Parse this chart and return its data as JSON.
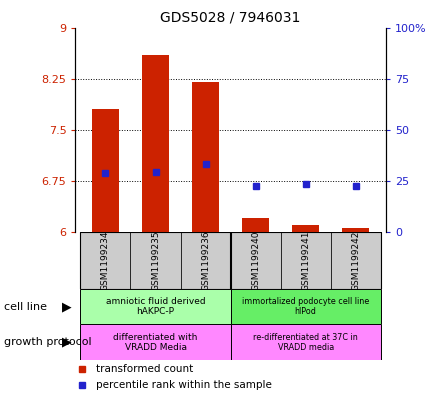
{
  "title": "GDS5028 / 7946031",
  "samples": [
    "GSM1199234",
    "GSM1199235",
    "GSM1199236",
    "GSM1199240",
    "GSM1199241",
    "GSM1199242"
  ],
  "red_values": [
    7.8,
    8.6,
    8.2,
    6.2,
    6.1,
    6.05
  ],
  "blue_values_left": [
    6.87,
    6.88,
    7.0,
    6.68,
    6.7,
    6.67
  ],
  "ylim": [
    6.0,
    9.0
  ],
  "yticks_left": [
    6.0,
    6.75,
    7.5,
    8.25,
    9.0
  ],
  "ytick_labels_left": [
    "6",
    "6.75",
    "7.5",
    "8.25",
    "9"
  ],
  "yticks_right": [
    0,
    25,
    50,
    75,
    100
  ],
  "ytick_labels_right": [
    "0",
    "25",
    "50",
    "75",
    "100%"
  ],
  "red_color": "#cc2200",
  "blue_color": "#2222cc",
  "bar_base": 6.0,
  "group1_label": "amniotic fluid derived\nhAKPC-P",
  "group2_label": "immortalized podocyte cell line\nhIPod",
  "protocol1_label": "differentiated with\nVRADD Media",
  "protocol2_label": "re-differentiated at 37C in\nVRADD media",
  "cell_line_label": "cell line",
  "growth_protocol_label": "growth protocol",
  "legend_red": "transformed count",
  "legend_blue": "percentile rank within the sample",
  "group1_color": "#aaffaa",
  "group2_color": "#66ee66",
  "protocol_color": "#ff88ff",
  "sample_bg_color": "#cccccc",
  "bar_width": 0.55
}
